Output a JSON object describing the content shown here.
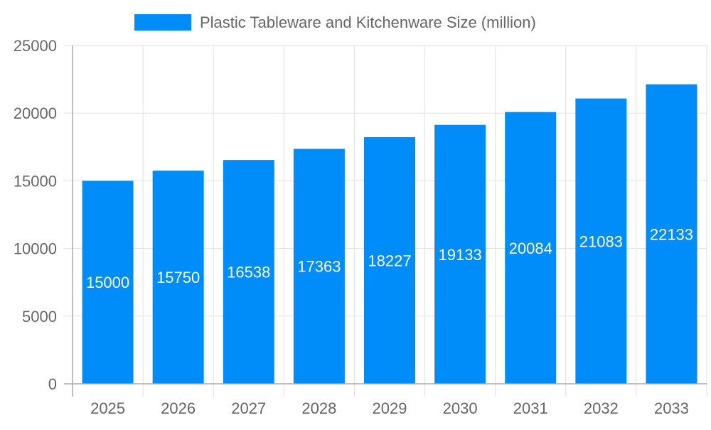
{
  "chart_data": {
    "type": "bar",
    "title": "",
    "xlabel": "",
    "ylabel": "",
    "categories": [
      "2025",
      "2026",
      "2027",
      "2028",
      "2029",
      "2030",
      "2031",
      "2032",
      "2033"
    ],
    "series": [
      {
        "name": "Plastic Tableware and Kitchenware Size (million)",
        "values": [
          15000,
          15750,
          16538,
          17363,
          18227,
          19133,
          20084,
          21083,
          22133
        ],
        "color": "#008cf9"
      }
    ],
    "ylim": [
      0,
      25000
    ],
    "yticks": [
      "0",
      "5000",
      "10000",
      "15000",
      "20000",
      "25000"
    ],
    "grid": true,
    "legend_position": "top",
    "data_labels": true
  }
}
